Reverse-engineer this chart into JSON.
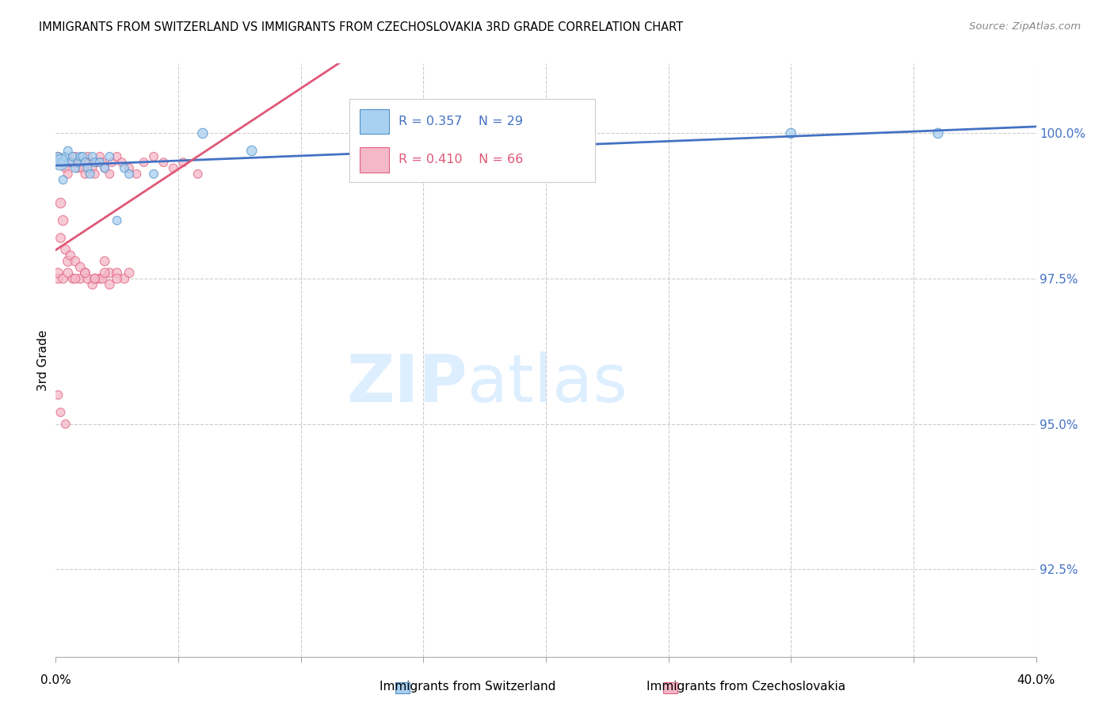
{
  "title": "IMMIGRANTS FROM SWITZERLAND VS IMMIGRANTS FROM CZECHOSLOVAKIA 3RD GRADE CORRELATION CHART",
  "source": "Source: ZipAtlas.com",
  "ylabel": "3rd Grade",
  "y_ticks": [
    92.5,
    95.0,
    97.5,
    100.0
  ],
  "y_tick_labels": [
    "92.5%",
    "95.0%",
    "97.5%",
    "100.0%"
  ],
  "xlim": [
    0.0,
    0.4
  ],
  "ylim": [
    91.0,
    101.2
  ],
  "legend_R_blue": "R = 0.357",
  "legend_N_blue": "N = 29",
  "legend_R_pink": "R = 0.410",
  "legend_N_pink": "N = 66",
  "legend_label_blue": "Immigrants from Switzerland",
  "legend_label_pink": "Immigrants from Czechoslovakia",
  "color_blue_fill": "#a8d0f0",
  "color_pink_fill": "#f5b8c8",
  "color_blue_edge": "#5090c8",
  "color_pink_edge": "#e06080",
  "color_blue_line": "#4472C4",
  "color_pink_line": "#e05878",
  "swiss_x": [
    0.001,
    0.002,
    0.003,
    0.004,
    0.005,
    0.006,
    0.007,
    0.008,
    0.009,
    0.01,
    0.011,
    0.012,
    0.013,
    0.014,
    0.015,
    0.016,
    0.018,
    0.02,
    0.022,
    0.025,
    0.028,
    0.03,
    0.04,
    0.06,
    0.08,
    0.3,
    0.36,
    0.002,
    0.003
  ],
  "swiss_y": [
    99.6,
    99.5,
    99.5,
    99.6,
    99.7,
    99.5,
    99.6,
    99.4,
    99.5,
    99.6,
    99.6,
    99.5,
    99.4,
    99.3,
    99.6,
    99.5,
    99.5,
    99.4,
    99.6,
    98.5,
    99.4,
    99.3,
    99.3,
    100.0,
    99.7,
    100.0,
    100.0,
    99.5,
    99.2
  ],
  "swiss_sizes": [
    60,
    60,
    60,
    60,
    60,
    60,
    60,
    60,
    60,
    60,
    60,
    60,
    60,
    60,
    60,
    60,
    60,
    60,
    60,
    60,
    60,
    60,
    60,
    80,
    80,
    80,
    80,
    200,
    60
  ],
  "czech_x": [
    0.001,
    0.002,
    0.003,
    0.004,
    0.005,
    0.006,
    0.007,
    0.008,
    0.009,
    0.01,
    0.011,
    0.012,
    0.013,
    0.014,
    0.015,
    0.016,
    0.017,
    0.018,
    0.019,
    0.02,
    0.022,
    0.023,
    0.025,
    0.027,
    0.03,
    0.033,
    0.036,
    0.04,
    0.044,
    0.048,
    0.052,
    0.058,
    0.002,
    0.003,
    0.005,
    0.007,
    0.01,
    0.012,
    0.015,
    0.018,
    0.02,
    0.022,
    0.025,
    0.028,
    0.001,
    0.002,
    0.004,
    0.006,
    0.008,
    0.01,
    0.013,
    0.016,
    0.019,
    0.022,
    0.001,
    0.003,
    0.005,
    0.008,
    0.012,
    0.016,
    0.02,
    0.025,
    0.03,
    0.001,
    0.002,
    0.004
  ],
  "czech_y": [
    99.6,
    99.5,
    99.5,
    99.4,
    99.3,
    99.5,
    99.5,
    99.6,
    99.4,
    99.5,
    99.4,
    99.3,
    99.6,
    99.5,
    99.4,
    99.3,
    99.5,
    99.6,
    99.5,
    99.4,
    99.3,
    99.5,
    99.6,
    99.5,
    99.4,
    99.3,
    99.5,
    99.6,
    99.5,
    99.4,
    99.5,
    99.3,
    98.8,
    98.5,
    97.8,
    97.5,
    97.5,
    97.6,
    97.4,
    97.5,
    97.8,
    97.6,
    97.6,
    97.5,
    97.5,
    98.2,
    98.0,
    97.9,
    97.8,
    97.7,
    97.5,
    97.5,
    97.5,
    97.4,
    97.6,
    97.5,
    97.6,
    97.5,
    97.6,
    97.5,
    97.6,
    97.5,
    97.6,
    95.5,
    95.2,
    95.0
  ],
  "czech_sizes": [
    60,
    60,
    60,
    60,
    60,
    60,
    60,
    60,
    60,
    60,
    60,
    60,
    60,
    60,
    60,
    60,
    60,
    60,
    60,
    60,
    60,
    60,
    60,
    60,
    60,
    60,
    60,
    60,
    60,
    60,
    60,
    60,
    80,
    80,
    80,
    70,
    70,
    70,
    70,
    70,
    70,
    70,
    70,
    70,
    70,
    70,
    70,
    70,
    70,
    70,
    70,
    70,
    70,
    70,
    70,
    70,
    70,
    70,
    70,
    70,
    70,
    70,
    70,
    60,
    60,
    60
  ]
}
